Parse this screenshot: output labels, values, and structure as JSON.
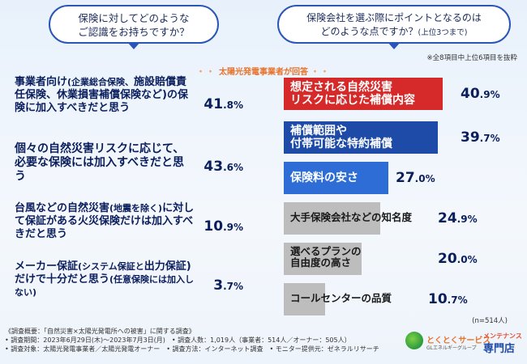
{
  "questions": {
    "left_line1": "保険に対してどのような",
    "left_line2": "ご認識をお持ちですか？",
    "right_line1": "保険会社を選ぶ際にポイントとなるのは",
    "right_line2": "どのような点ですか？",
    "right_sub": "(上位3つまで)"
  },
  "note_top": "※全8項目中上位6項目を抜粋",
  "respondent": "太陽光発電事業者が回答",
  "n_label": "(n=514人)",
  "footer": {
    "line1": "《調査概要：「自然災害×太陽光発電所への被害」に関する調査》",
    "line2": "• 調査期間：2023年6月29日(木)～2023年7月3日(月)　• 調査人数：1,019人（事業者：514人／オーナー：505人）",
    "line3": "• 調査対象：太陽光発電事業者／太陽光発電オーナー　• 調査方法：インターネット調査　• モニター提供元：ゼネラルリサーチ"
  },
  "logo": {
    "brand": "とくとくサービス",
    "maint": "メンテナンス",
    "shop": "専門店",
    "group": "GLエネルギーグループ"
  },
  "chart_data": [
    {
      "type": "bar",
      "title": "保険に対してどのようなご認識をお持ちですか？",
      "unit": "%",
      "categories": [
        "事業者向け(企業総合保険、施設賠償責任保険、休業損害補償保険など)の保険に加入すべきだと思う",
        "個々の自然災害リスクに応じて、必要な保険には加入すべきだと思う",
        "台風などの自然災害(地震を除く)に対して保証がある火災保険だけは加入すべきだと思う",
        "メーカー保証(システム保証と出力保証)だけで十分だと思う(任意保険には加入しない)"
      ],
      "values": [
        41.8,
        43.6,
        10.9,
        3.7
      ],
      "items": [
        {
          "lines": [
            "事業者向け",
            "(企業総合保険、",
            "施設賠償責任保険、",
            "休業損害補償保険など)の",
            "保険に加入すべきだと思う"
          ],
          "pct_int": "41",
          "pct_dec": ".8%"
        },
        {
          "lines": [
            "個々の自然災害リスクに",
            "応じて、必要な保険には",
            "加入すべきだと思う"
          ],
          "pct_int": "43",
          "pct_dec": ".6%"
        },
        {
          "lines": [
            "台風などの自然災害",
            "(地震を除く)",
            "に対して保証がある火災保険",
            "だけは加入すべきだと思う"
          ],
          "pct_int": "10",
          "pct_dec": ".9%"
        },
        {
          "lines": [
            "メーカー保証",
            "(システム保証と",
            "出力保証)",
            "だけで十分だと",
            "思う",
            "(任意保険には加入しない)"
          ],
          "pct_int": "3",
          "pct_dec": ".7%"
        }
      ]
    },
    {
      "type": "bar",
      "title": "保険会社を選ぶ際にポイントとなるのはどのような点ですか？(上位3つまで)",
      "unit": "%",
      "categories": [
        "想定される自然災害リスクに応じた補償内容",
        "補償範囲や付帯可能な特約補償",
        "保険料の安さ",
        "大手保険会社などの知名度",
        "選べるプランの自由度の高さ",
        "コールセンターの品質"
      ],
      "values": [
        40.9,
        39.7,
        27.0,
        24.9,
        20.0,
        10.7
      ],
      "colors": [
        "#d62a2a",
        "#1e4aa8",
        "#2e6dd6",
        "#bdbdbd",
        "#bdbdbd",
        "#bdbdbd"
      ],
      "items": [
        {
          "lines": [
            "想定される自然災害",
            "リスクに応じた補償内容"
          ],
          "pct_int": "40",
          "pct_dec": ".9%"
        },
        {
          "lines": [
            "補償範囲や",
            "付帯可能な特約補償"
          ],
          "pct_int": "39",
          "pct_dec": ".7%"
        },
        {
          "lines": [
            "保険料の安さ"
          ],
          "pct_int": "27",
          "pct_dec": ".0%"
        },
        {
          "lines": [
            "大手保険会社などの知名度"
          ],
          "pct_int": "24",
          "pct_dec": ".9%"
        },
        {
          "lines": [
            "選べるプランの",
            "自由度の高さ"
          ],
          "pct_int": "20",
          "pct_dec": ".0%"
        },
        {
          "lines": [
            "コールセンターの品質"
          ],
          "pct_int": "10",
          "pct_dec": ".7%"
        }
      ]
    }
  ]
}
